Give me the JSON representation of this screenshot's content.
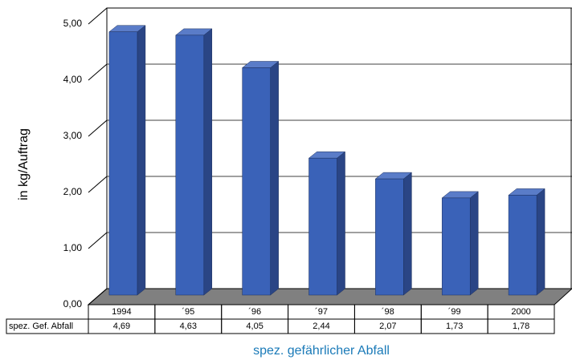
{
  "chart_data": {
    "type": "bar3d",
    "y_label": "in kg/Auftrag",
    "x_label": "spez. gefährlicher Abfall",
    "categories": [
      "1994",
      "´95",
      "´96",
      "´97",
      "´98",
      "´99",
      "2000"
    ],
    "series": [
      {
        "name": "spez. Gef. Abfall",
        "color": "#3a62b8",
        "values": [
          4.69,
          4.63,
          4.05,
          2.44,
          2.07,
          1.73,
          1.78
        ],
        "value_labels": [
          "4,69",
          "4,63",
          "4,05",
          "2,44",
          "2,07",
          "1,73",
          "1,78"
        ]
      }
    ],
    "ylim": [
      0,
      5
    ],
    "yticks": [
      {
        "value": 0,
        "label": "0,00"
      },
      {
        "value": 1,
        "label": "1,00"
      },
      {
        "value": 2,
        "label": "2,00"
      },
      {
        "value": 3,
        "label": "3,00"
      },
      {
        "value": 4,
        "label": "4,00"
      },
      {
        "value": 5,
        "label": "5,00"
      }
    ],
    "grid": true
  }
}
